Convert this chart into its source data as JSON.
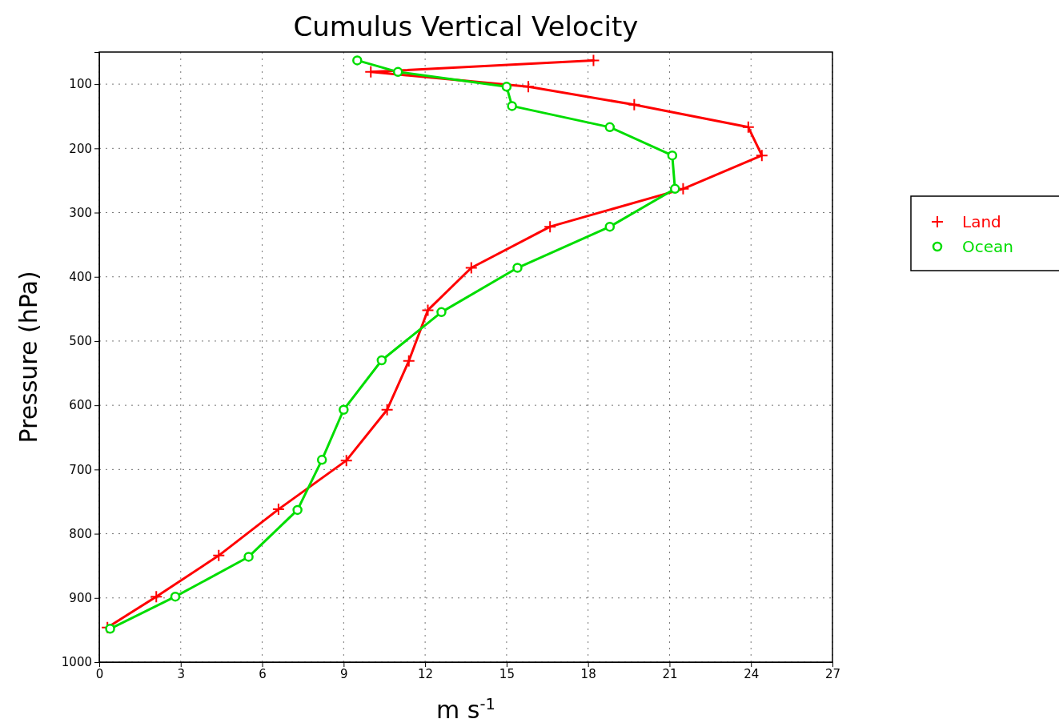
{
  "chart_data": {
    "type": "line",
    "title": "Cumulus Vertical Velocity",
    "xlabel": "m s$^{-1}$",
    "ylabel": "Pressure (hPa)",
    "xlim": [
      0,
      27
    ],
    "xticks": [
      0,
      3,
      6,
      9,
      12,
      15,
      18,
      21,
      24,
      27
    ],
    "ylim": [
      1000,
      50
    ],
    "yticks": [
      100,
      200,
      300,
      400,
      500,
      600,
      700,
      800,
      900,
      1000
    ],
    "grid": true,
    "legend": "right",
    "line_style": "solid",
    "series": [
      {
        "name": "Land",
        "color": "#ff0000",
        "marker": "cross",
        "x": [
          18.2,
          10.0,
          15.8,
          19.7,
          23.9,
          24.4,
          21.5,
          16.6,
          13.7,
          12.1,
          11.4,
          10.6,
          9.1,
          6.6,
          4.4,
          2.1,
          0.3
        ],
        "values": [
          63,
          81,
          104,
          132,
          167,
          211,
          263,
          322,
          386,
          452,
          531,
          607,
          686,
          762,
          834,
          898,
          946
        ]
      },
      {
        "name": "Ocean",
        "color": "#00dd00",
        "marker": "circle",
        "x": [
          9.5,
          11.0,
          15.0,
          15.2,
          18.8,
          21.1,
          21.2,
          18.8,
          15.4,
          12.6,
          10.4,
          9.0,
          8.2,
          7.3,
          5.5,
          2.8,
          0.4
        ],
        "values": [
          63,
          81,
          104,
          134,
          167,
          211,
          263,
          322,
          386,
          455,
          530,
          607,
          685,
          763,
          836,
          898,
          948
        ]
      }
    ]
  }
}
